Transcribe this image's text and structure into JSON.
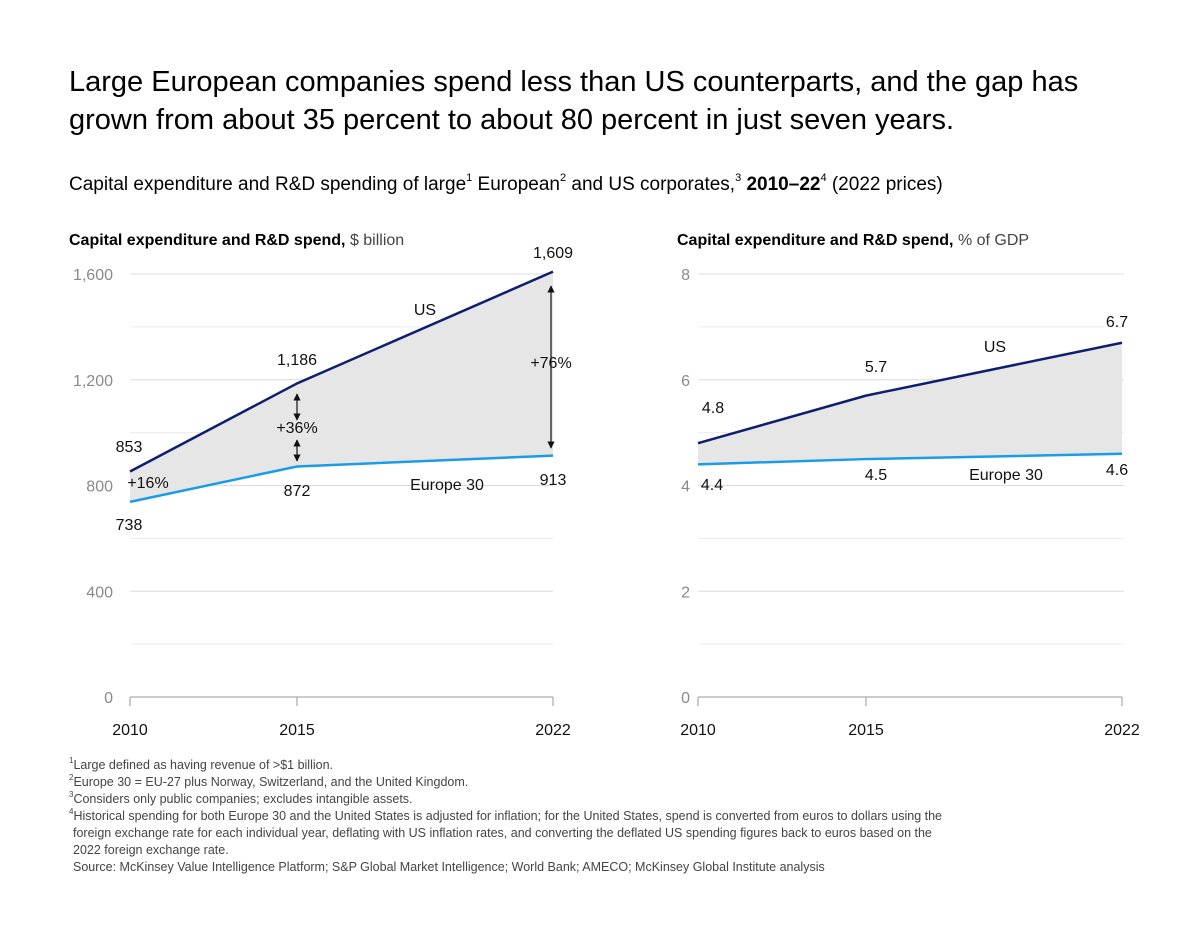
{
  "headline": "Large European companies spend less than US counterparts, and the gap has grown from about 35 percent to about 80 percent in just seven years.",
  "subtitle": {
    "part1": "Capital expenditure and R&D spending of large",
    "sup1": "1",
    "part2": " European",
    "sup2": "2",
    "part3": " and US corporates,",
    "sup3": "3",
    "bold": " 2010–22",
    "sup4": "4",
    "tail": " (2022 prices)"
  },
  "colors": {
    "us": "#0f1f6e",
    "europe": "#1a9ce8",
    "gap_fill": "#e6e6e6",
    "grid": "#dcdcdc"
  },
  "chart_data": [
    {
      "type": "line",
      "title": "Capital expenditure and R&D spend,",
      "unit": "$ billion",
      "x": [
        "2010",
        "2015",
        "2022"
      ],
      "ylim": [
        0,
        1600
      ],
      "yticks": [
        "0",
        "400",
        "800",
        "1,200",
        "1,600"
      ],
      "grid": true,
      "shaded_gap": true,
      "series": [
        {
          "name": "US",
          "values": [
            853,
            1186,
            1609
          ],
          "labels": [
            "853",
            "1,186",
            "1,609"
          ]
        },
        {
          "name": "Europe 30",
          "values": [
            738,
            872,
            913
          ],
          "labels": [
            "738",
            "872",
            "913"
          ]
        }
      ],
      "gap_annotations": [
        "+16%",
        "+36%",
        "+76%"
      ]
    },
    {
      "type": "line",
      "title": "Capital expenditure and R&D spend,",
      "unit": "% of GDP",
      "x": [
        "2010",
        "2015",
        "2022"
      ],
      "ylim": [
        0,
        8
      ],
      "yticks": [
        "0",
        "2",
        "4",
        "6",
        "8"
      ],
      "grid": true,
      "shaded_gap": true,
      "series": [
        {
          "name": "US",
          "values": [
            4.8,
            5.7,
            6.7
          ],
          "labels": [
            "4.8",
            "5.7",
            "6.7"
          ]
        },
        {
          "name": "Europe 30",
          "values": [
            4.4,
            4.5,
            4.6
          ],
          "labels": [
            "4.4",
            "4.5",
            "4.6"
          ]
        }
      ]
    }
  ],
  "footnotes": [
    {
      "num": "1",
      "text": "Large defined as having revenue of >$1 billion."
    },
    {
      "num": "2",
      "text": "Europe 30 = EU-27 plus Norway, Switzerland, and the United Kingdom."
    },
    {
      "num": "3",
      "text": "Considers only public companies; excludes intangible assets."
    },
    {
      "num": "4",
      "text": "Historical spending for both Europe 30 and the United States is adjusted for inflation; for the United States, spend is converted from euros to dollars using the",
      "cont1": "foreign exchange rate for each individual year, deflating with US inflation rates, and converting the deflated US spending figures back to euros based on the",
      "cont2": "2022 foreign exchange rate."
    }
  ],
  "source": "Source: McKinsey Value Intelligence Platform; S&P Global Market Intelligence; World Bank; AMECO; McKinsey Global Institute analysis"
}
